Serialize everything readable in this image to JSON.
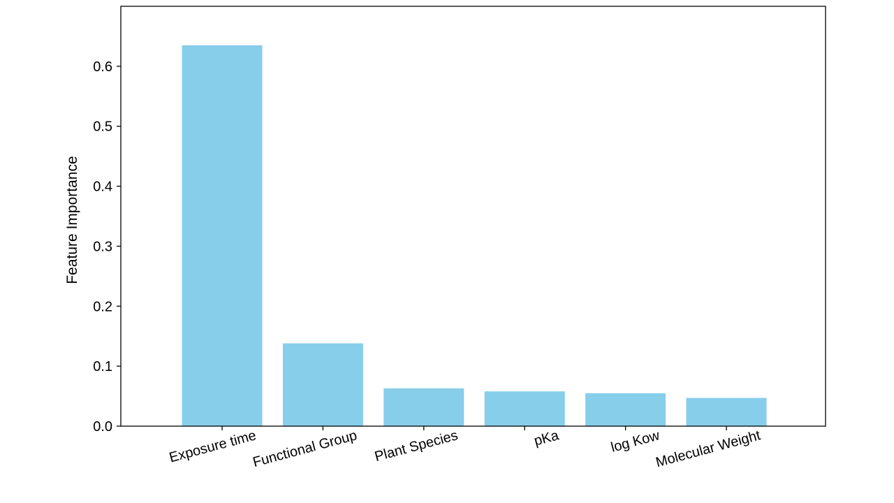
{
  "chart_data": {
    "type": "bar",
    "title": "",
    "xlabel": "",
    "ylabel": "Feature Importance",
    "categories": [
      "Exposure time",
      "Functional Group",
      "Plant Species",
      "pKa",
      "log Kow",
      "Molecular Weight"
    ],
    "values": [
      0.635,
      0.138,
      0.063,
      0.058,
      0.055,
      0.047
    ],
    "ylim": [
      0,
      0.7
    ],
    "yticks": [
      0.0,
      0.1,
      0.2,
      0.3,
      0.4,
      0.5,
      0.6
    ],
    "ytick_labels": [
      "0.0",
      "0.1",
      "0.2",
      "0.3",
      "0.4",
      "0.5",
      "0.6"
    ],
    "bar_color": "#87CEEB",
    "grid": false,
    "legend": "none"
  }
}
